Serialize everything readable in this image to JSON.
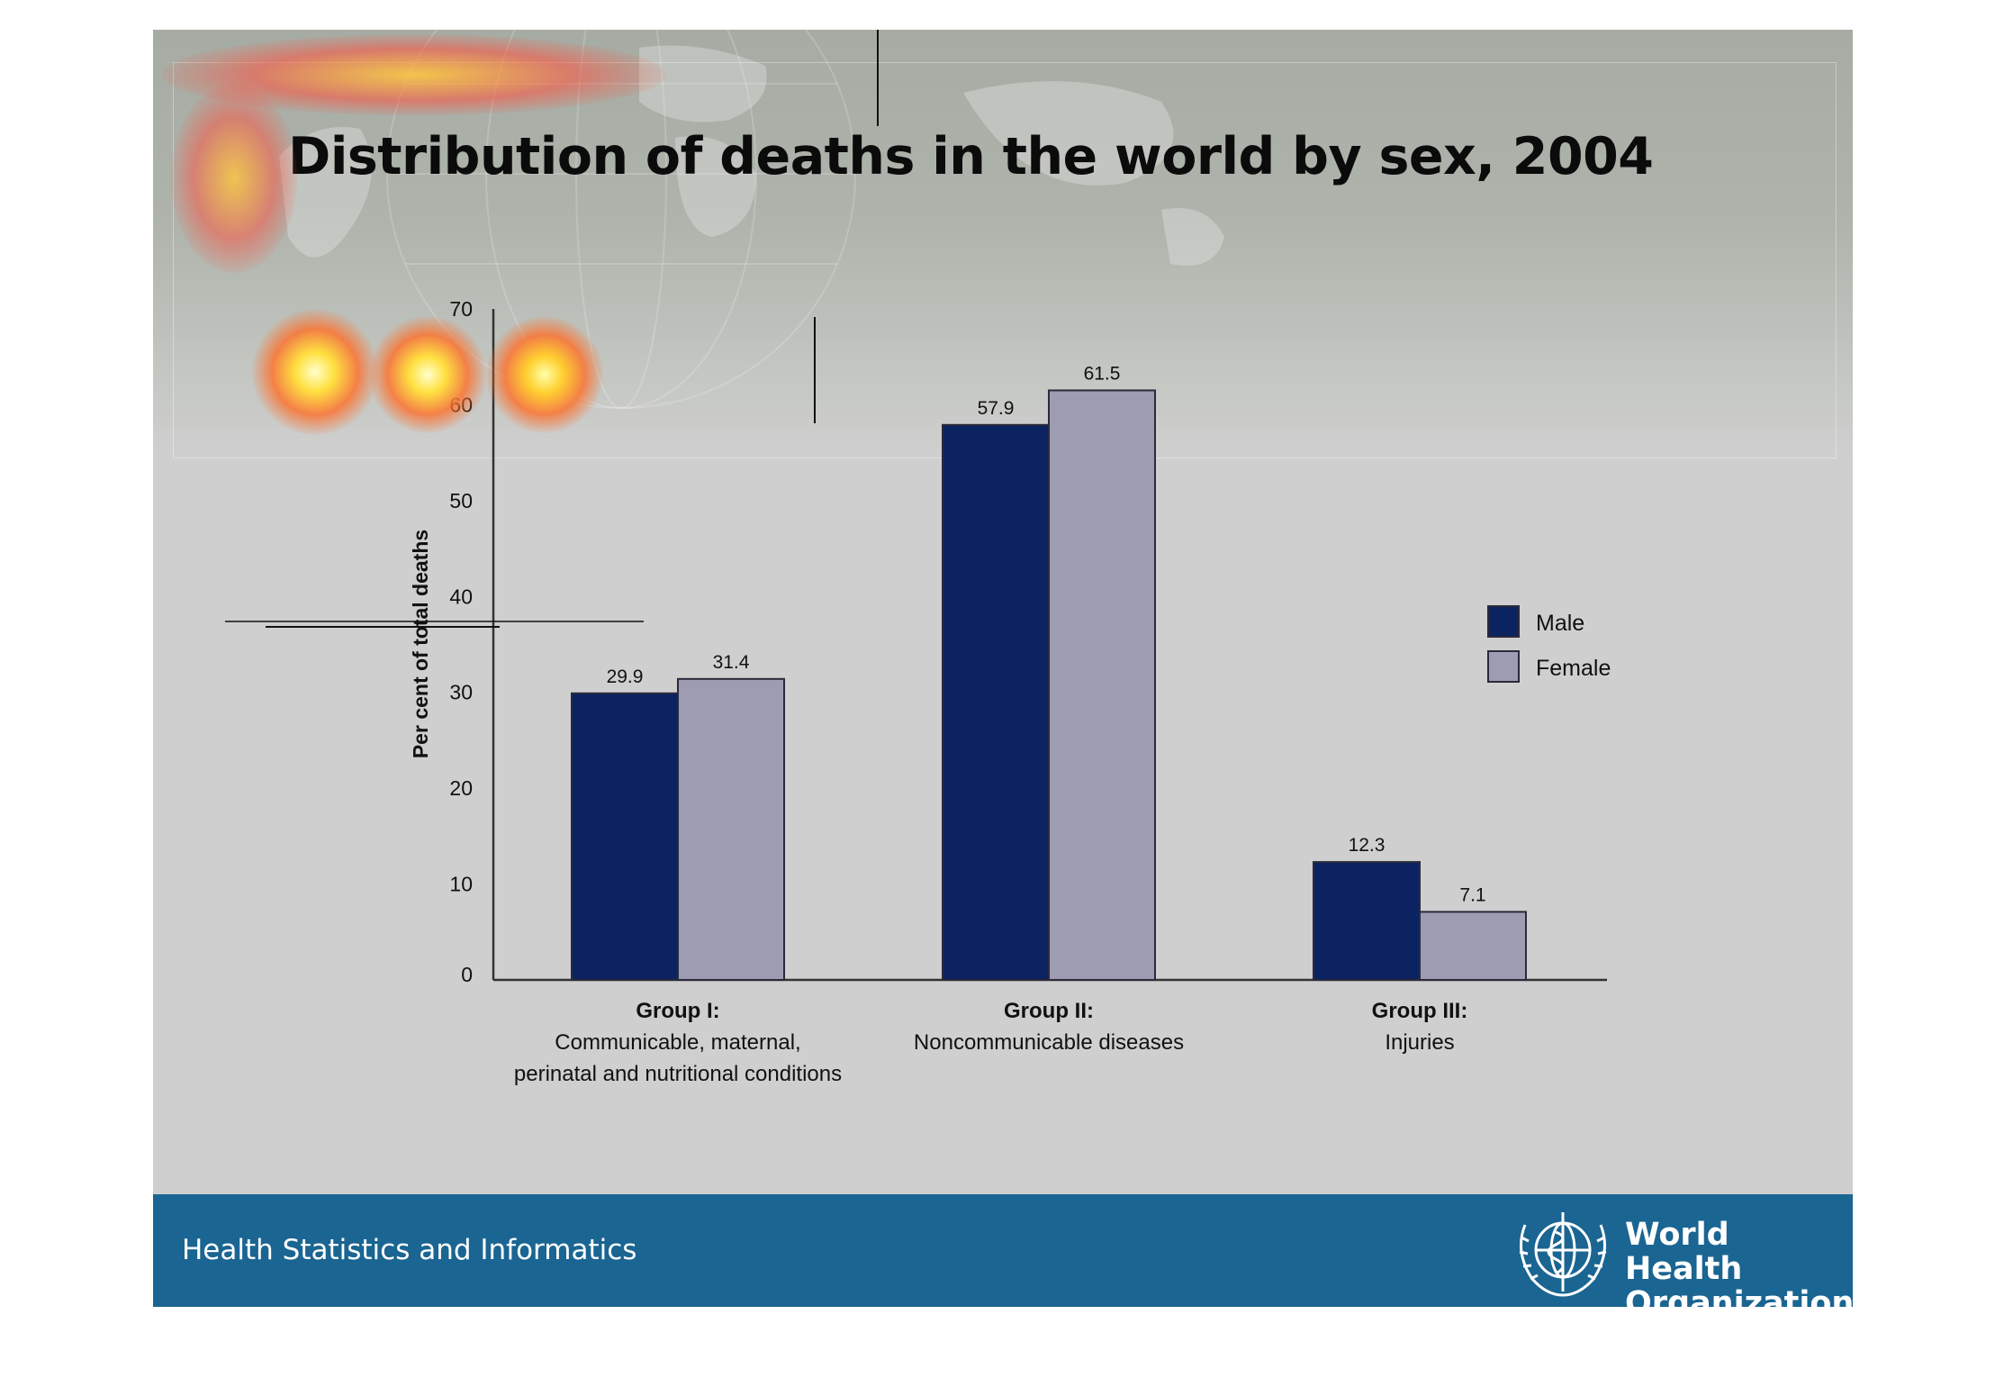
{
  "slide": {
    "title": "Distribution of deaths in the world by sex, 2004"
  },
  "footer": {
    "left_text": "Health Statistics and Informatics",
    "org_name_line1": "World Health",
    "org_name_line2": "Organization",
    "logo_icon": "who-emblem-icon"
  },
  "colors": {
    "male": "#0b2461",
    "female": "#9d9cb3",
    "footer_bg": "#1a6592"
  },
  "chart_data": {
    "type": "bar",
    "title": "Distribution of deaths in the world by sex, 2004",
    "ylabel": "Per cent of total deaths",
    "xlabel": "",
    "ylim": [
      0,
      70
    ],
    "yticks": [
      0,
      10,
      20,
      30,
      40,
      50,
      60,
      70
    ],
    "grid": false,
    "legend_position": "right",
    "categories": [
      {
        "title": "Group I:",
        "desc": [
          "Communicable, maternal,",
          "perinatal and nutritional conditions"
        ]
      },
      {
        "title": "Group II:",
        "desc": [
          "Noncommunicable diseases"
        ]
      },
      {
        "title": "Group III:",
        "desc": [
          "Injuries"
        ]
      }
    ],
    "series": [
      {
        "name": "Male",
        "color": "#0b2461",
        "values": [
          29.9,
          57.9,
          12.3
        ]
      },
      {
        "name": "Female",
        "color": "#9d9cb3",
        "values": [
          31.4,
          61.5,
          7.1
        ]
      }
    ]
  }
}
